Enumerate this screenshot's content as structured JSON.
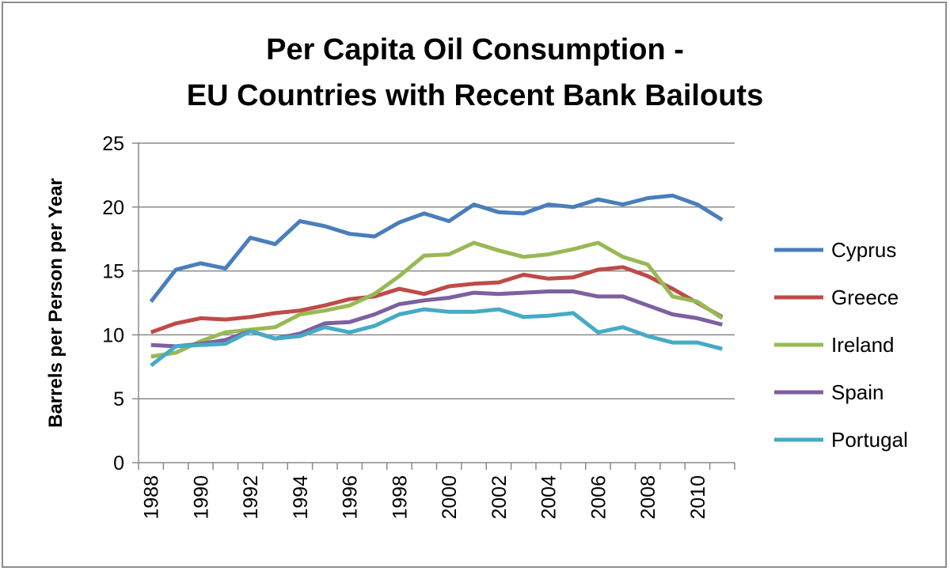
{
  "chart_data": {
    "type": "line",
    "title": [
      "Per Capita Oil Consumption -",
      "EU Countries with Recent Bank Bailouts"
    ],
    "xlabel": "",
    "ylabel": "Barrels per Person per Year",
    "ylim": [
      0,
      25
    ],
    "yticks": [
      0,
      5,
      10,
      15,
      20,
      25
    ],
    "grid": true,
    "legend_position": "right",
    "x": [
      1988,
      1989,
      1990,
      1991,
      1992,
      1993,
      1994,
      1995,
      1996,
      1997,
      1998,
      1999,
      2000,
      2001,
      2002,
      2003,
      2004,
      2005,
      2006,
      2007,
      2008,
      2009,
      2010,
      2011
    ],
    "xtick_labels": [
      "1988",
      "1990",
      "1992",
      "1994",
      "1996",
      "1998",
      "2000",
      "2002",
      "2004",
      "2006",
      "2008",
      "2010"
    ],
    "series": [
      {
        "name": "Cyprus",
        "color": "#4a7ebb",
        "values": [
          12.6,
          15.1,
          15.6,
          15.2,
          17.6,
          17.1,
          18.9,
          18.5,
          17.9,
          17.7,
          18.8,
          19.5,
          18.9,
          20.2,
          19.6,
          19.5,
          20.2,
          20.0,
          20.6,
          20.2,
          20.7,
          20.9,
          20.2,
          19.0
        ]
      },
      {
        "name": "Greece",
        "color": "#be4b48",
        "values": [
          10.2,
          10.9,
          11.3,
          11.2,
          11.4,
          11.7,
          11.9,
          12.3,
          12.8,
          13.0,
          13.6,
          13.2,
          13.8,
          14.0,
          14.1,
          14.7,
          14.4,
          14.5,
          15.1,
          15.3,
          14.6,
          13.6,
          12.5,
          11.4
        ]
      },
      {
        "name": "Ireland",
        "color": "#98b954",
        "values": [
          8.3,
          8.6,
          9.5,
          10.2,
          10.4,
          10.6,
          11.6,
          11.9,
          12.3,
          13.2,
          14.6,
          16.2,
          16.3,
          17.2,
          16.6,
          16.1,
          16.3,
          16.7,
          17.2,
          16.1,
          15.5,
          13.0,
          12.6,
          11.3
        ]
      },
      {
        "name": "Spain",
        "color": "#7d60a0",
        "values": [
          9.2,
          9.1,
          9.3,
          9.6,
          10.3,
          9.7,
          10.1,
          10.9,
          11.0,
          11.6,
          12.4,
          12.7,
          12.9,
          13.3,
          13.2,
          13.3,
          13.4,
          13.4,
          13.0,
          13.0,
          12.3,
          11.6,
          11.3,
          10.8
        ]
      },
      {
        "name": "Portugal",
        "color": "#46aac5",
        "values": [
          7.6,
          9.1,
          9.2,
          9.3,
          10.3,
          9.7,
          9.9,
          10.6,
          10.2,
          10.7,
          11.6,
          12.0,
          11.8,
          11.8,
          12.0,
          11.4,
          11.5,
          11.7,
          10.2,
          10.6,
          9.9,
          9.4,
          9.4,
          8.9
        ]
      }
    ]
  }
}
